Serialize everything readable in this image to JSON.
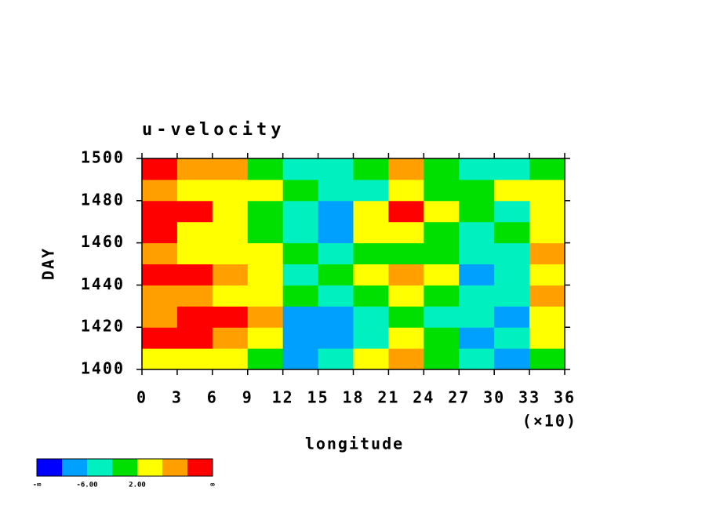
{
  "chart_data": {
    "type": "heatmap",
    "title": "u-velocity",
    "x_label": "longitude",
    "x_note": "(×10)",
    "y_label": "DAY",
    "xbins": [
      0,
      3,
      6,
      9,
      12,
      15,
      18,
      21,
      24,
      27,
      30,
      33,
      36
    ],
    "ybins": [
      1400,
      1410,
      1420,
      1430,
      1440,
      1450,
      1460,
      1470,
      1480,
      1490,
      1500
    ],
    "values": [
      [
        4,
        5,
        3,
        -1,
        -8,
        -3,
        5,
        8,
        -2,
        -6,
        -9,
        0
      ],
      [
        10,
        11,
        8,
        3,
        -9,
        -10,
        -3,
        3,
        -2,
        -8,
        -6,
        4
      ],
      [
        7,
        12,
        12,
        6,
        -7,
        -8,
        -4,
        -2,
        -3,
        -6,
        -8,
        5
      ],
      [
        9,
        7,
        5,
        2,
        -2,
        -5,
        0,
        2,
        -1,
        -4,
        -3,
        7
      ],
      [
        12,
        11,
        6,
        3,
        -3,
        0,
        5,
        7,
        3,
        -9,
        -3,
        5
      ],
      [
        8,
        3,
        5,
        4,
        -1,
        -6,
        -2,
        1,
        -2,
        -5,
        -4,
        8
      ],
      [
        11,
        4,
        2,
        -1,
        -4,
        -9,
        2,
        3,
        -1,
        -4,
        0,
        4
      ],
      [
        12,
        10,
        4,
        0,
        -3,
        -10,
        2,
        11,
        5,
        -1,
        -3,
        3
      ],
      [
        6,
        5,
        3,
        2,
        -2,
        -4,
        -3,
        4,
        1,
        0,
        2,
        5
      ],
      [
        11,
        9,
        6,
        1,
        -4,
        -5,
        -2,
        6,
        -1,
        -3,
        -6,
        1
      ]
    ],
    "levels": [
      -10,
      -6,
      -2,
      2,
      6,
      10
    ],
    "colors": [
      "#0000ff",
      "#00a0ff",
      "#00f0c0",
      "#00e000",
      "#ffff00",
      "#ffa000",
      "#ff0000"
    ],
    "colorbar_labels": [
      "-∞",
      {
        "value": -6,
        "label": "-6.00"
      },
      {
        "value": 2,
        "label": "2.00"
      },
      "∞"
    ],
    "xlim": [
      0,
      36
    ],
    "ylim": [
      1400,
      1500
    ],
    "xticks": [
      0,
      3,
      6,
      9,
      12,
      15,
      18,
      21,
      24,
      27,
      30,
      33,
      36
    ],
    "yticks": [
      1400,
      1420,
      1440,
      1460,
      1480,
      1500
    ]
  }
}
